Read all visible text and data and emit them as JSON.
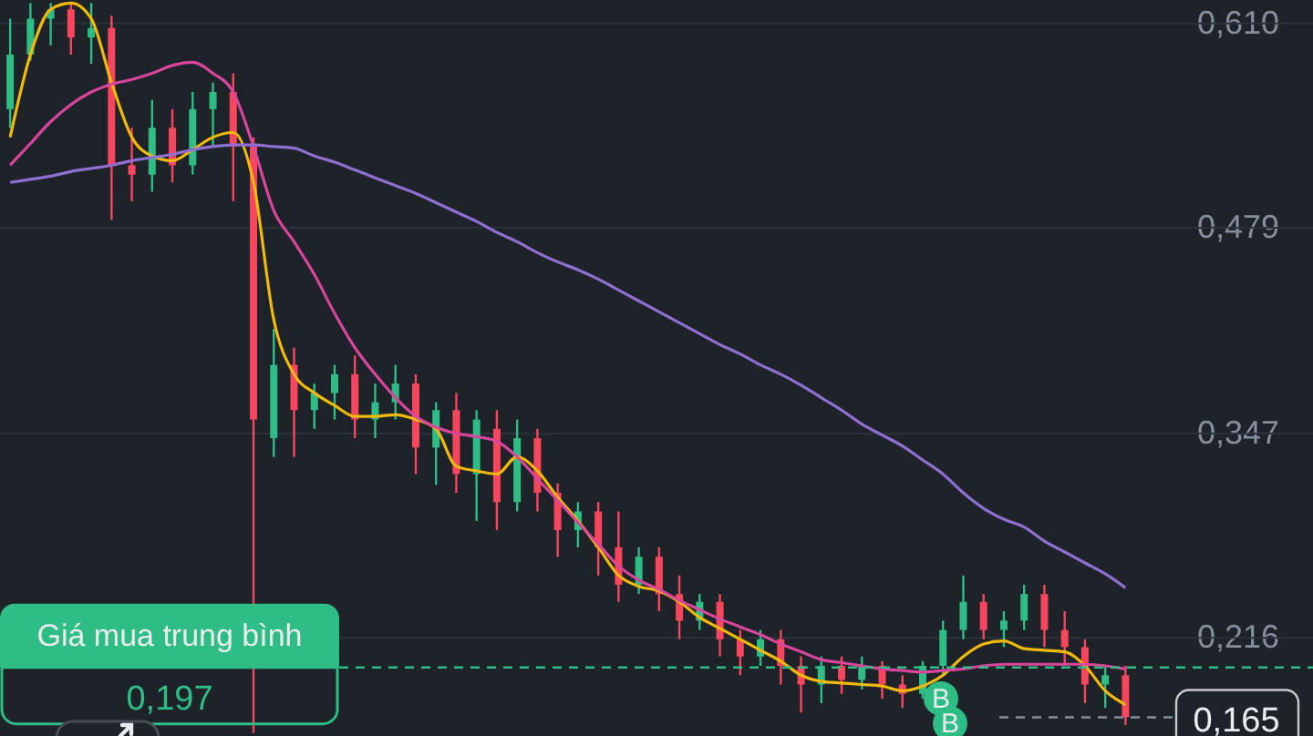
{
  "chart_data": {
    "type": "candlestick",
    "categories": [
      null,
      null,
      null,
      null,
      null,
      null,
      null,
      null,
      null,
      null,
      null,
      null,
      null,
      null,
      null,
      null,
      null,
      null,
      null,
      null,
      null,
      null,
      null,
      null,
      null,
      null,
      null,
      null,
      null,
      null,
      null,
      null,
      null,
      null,
      null,
      null,
      null,
      null,
      null,
      null,
      null,
      null,
      null,
      null,
      null,
      null,
      null,
      null,
      null,
      null,
      null,
      null,
      null,
      null,
      null,
      null
    ],
    "ohlc": [
      [
        0.555,
        0.613,
        0.543,
        0.59
      ],
      [
        0.59,
        0.623,
        0.586,
        0.613
      ],
      [
        0.613,
        0.623,
        0.596,
        0.619
      ],
      [
        0.619,
        0.623,
        0.59,
        0.601
      ],
      [
        0.601,
        0.623,
        0.584,
        0.607
      ],
      [
        0.607,
        0.615,
        0.484,
        0.519
      ],
      [
        0.519,
        0.543,
        0.496,
        0.513
      ],
      [
        0.513,
        0.561,
        0.502,
        0.543
      ],
      [
        0.543,
        0.555,
        0.508,
        0.519
      ],
      [
        0.519,
        0.566,
        0.513,
        0.555
      ],
      [
        0.555,
        0.572,
        0.531,
        0.566
      ],
      [
        0.566,
        0.578,
        0.496,
        0.531
      ],
      [
        0.531,
        0.537,
        0.155,
        0.356
      ],
      [
        0.344,
        0.414,
        0.332,
        0.391
      ],
      [
        0.391,
        0.402,
        0.332,
        0.362
      ],
      [
        0.362,
        0.379,
        0.35,
        0.373
      ],
      [
        0.373,
        0.391,
        0.356,
        0.385
      ],
      [
        0.385,
        0.397,
        0.344,
        0.356
      ],
      [
        0.356,
        0.379,
        0.344,
        0.367
      ],
      [
        0.367,
        0.391,
        0.356,
        0.379
      ],
      [
        0.379,
        0.385,
        0.321,
        0.338
      ],
      [
        0.338,
        0.367,
        0.314,
        0.362
      ],
      [
        0.362,
        0.373,
        0.309,
        0.321
      ],
      [
        0.321,
        0.362,
        0.291,
        0.356
      ],
      [
        0.35,
        0.362,
        0.285,
        0.303
      ],
      [
        0.303,
        0.356,
        0.297,
        0.344
      ],
      [
        0.344,
        0.35,
        0.297,
        0.309
      ],
      [
        0.309,
        0.315,
        0.268,
        0.285
      ],
      [
        0.285,
        0.303,
        0.274,
        0.297
      ],
      [
        0.297,
        0.303,
        0.256,
        0.274
      ],
      [
        0.274,
        0.297,
        0.239,
        0.25
      ],
      [
        0.25,
        0.274,
        0.244,
        0.268
      ],
      [
        0.268,
        0.274,
        0.233,
        0.244
      ],
      [
        0.244,
        0.256,
        0.215,
        0.227
      ],
      [
        0.227,
        0.244,
        0.221,
        0.239
      ],
      [
        0.239,
        0.244,
        0.204,
        0.215
      ],
      [
        0.215,
        0.221,
        0.192,
        0.204
      ],
      [
        0.204,
        0.221,
        0.198,
        0.215
      ],
      [
        0.215,
        0.221,
        0.186,
        0.198
      ],
      [
        0.198,
        0.204,
        0.168,
        0.186
      ],
      [
        0.186,
        0.204,
        0.174,
        0.198
      ],
      [
        0.198,
        0.204,
        0.18,
        0.189
      ],
      [
        0.189,
        0.204,
        0.183,
        0.198
      ],
      [
        0.198,
        0.201,
        0.177,
        0.186
      ],
      [
        0.186,
        0.192,
        0.171,
        0.18
      ],
      [
        0.18,
        0.201,
        0.177,
        0.198
      ],
      [
        0.198,
        0.227,
        0.192,
        0.221
      ],
      [
        0.221,
        0.256,
        0.215,
        0.239
      ],
      [
        0.239,
        0.244,
        0.215,
        0.221
      ],
      [
        0.221,
        0.233,
        0.21,
        0.227
      ],
      [
        0.227,
        0.25,
        0.221,
        0.244
      ],
      [
        0.244,
        0.25,
        0.21,
        0.221
      ],
      [
        0.221,
        0.233,
        0.198,
        0.21
      ],
      [
        0.21,
        0.215,
        0.174,
        0.186
      ],
      [
        0.186,
        0.198,
        0.171,
        0.192
      ],
      [
        0.192,
        0.198,
        0.16,
        0.165
      ]
    ],
    "colors": [
      "#2ebd85",
      "#2ebd85",
      "#2ebd85",
      "#f6465d",
      "#2ebd85",
      "#f6465d",
      "#f6465d",
      "#2ebd85",
      "#f6465d",
      "#2ebd85",
      "#2ebd85",
      "#f6465d",
      "#f6465d",
      "#2ebd85",
      "#f6465d",
      "#2ebd85",
      "#2ebd85",
      "#f6465d",
      "#2ebd85",
      "#2ebd85",
      "#f6465d",
      "#2ebd85",
      "#f6465d",
      "#2ebd85",
      "#f6465d",
      "#2ebd85",
      "#f6465d",
      "#f6465d",
      "#2ebd85",
      "#f6465d",
      "#f6465d",
      "#2ebd85",
      "#f6465d",
      "#f6465d",
      "#2ebd85",
      "#f6465d",
      "#f6465d",
      "#2ebd85",
      "#f6465d",
      "#f6465d",
      "#2ebd85",
      "#f6465d",
      "#2ebd85",
      "#f6465d",
      "#f6465d",
      "#2ebd85",
      "#2ebd85",
      "#2ebd85",
      "#f6465d",
      "#2ebd85",
      "#2ebd85",
      "#f6465d",
      "#f6465d",
      "#f6465d",
      "#2ebd85",
      "#f6465d"
    ],
    "series": [
      {
        "type": "line",
        "color": "#f0b90b",
        "values": [
          0.537,
          0.59,
          0.619,
          0.623,
          0.613,
          0.572,
          0.537,
          0.525,
          0.522,
          0.529,
          0.537,
          0.54,
          0.508,
          0.42,
          0.385,
          0.373,
          0.365,
          0.358,
          0.358,
          0.359,
          0.356,
          0.35,
          0.326,
          0.323,
          0.321,
          0.332,
          0.323,
          0.306,
          0.291,
          0.274,
          0.256,
          0.249,
          0.246,
          0.239,
          0.229,
          0.222,
          0.215,
          0.208,
          0.201,
          0.192,
          0.188,
          0.187,
          0.186,
          0.185,
          0.182,
          0.185,
          0.192,
          0.204,
          0.212,
          0.214,
          0.209,
          0.208,
          0.207,
          0.198,
          0.182,
          0.173
        ]
      },
      {
        "type": "line",
        "color": "#d9449c",
        "values": [
          0.519,
          0.533,
          0.547,
          0.558,
          0.566,
          0.571,
          0.574,
          0.578,
          0.583,
          0.585,
          0.578,
          0.566,
          0.531,
          0.49,
          0.47,
          0.449,
          0.424,
          0.402,
          0.385,
          0.37,
          0.358,
          0.351,
          0.347,
          0.345,
          0.342,
          0.332,
          0.318,
          0.304,
          0.29,
          0.276,
          0.262,
          0.253,
          0.247,
          0.24,
          0.234,
          0.228,
          0.223,
          0.218,
          0.212,
          0.207,
          0.202,
          0.2,
          0.198,
          0.196,
          0.195,
          0.194,
          0.195,
          0.196,
          0.198,
          0.199,
          0.199,
          0.199,
          0.199,
          0.199,
          0.198,
          0.196
        ]
      },
      {
        "type": "line",
        "color": "#8f6fd1",
        "values": [
          0.508,
          0.51,
          0.512,
          0.515,
          0.517,
          0.519,
          0.522,
          0.524,
          0.526,
          0.529,
          0.531,
          0.532,
          0.532,
          0.531,
          0.53,
          0.525,
          0.521,
          0.516,
          0.511,
          0.506,
          0.501,
          0.495,
          0.489,
          0.483,
          0.476,
          0.47,
          0.463,
          0.457,
          0.452,
          0.446,
          0.439,
          0.432,
          0.425,
          0.418,
          0.411,
          0.404,
          0.398,
          0.391,
          0.385,
          0.378,
          0.37,
          0.362,
          0.353,
          0.346,
          0.339,
          0.33,
          0.321,
          0.309,
          0.299,
          0.292,
          0.287,
          0.278,
          0.271,
          0.264,
          0.257,
          0.248
        ]
      }
    ],
    "ylim": [
      0.153,
      0.625
    ],
    "yticks": [
      {
        "value": 0.61,
        "label": "0,610"
      },
      {
        "value": 0.479,
        "label": "0,479"
      },
      {
        "value": 0.347,
        "label": "0,347"
      },
      {
        "value": 0.216,
        "label": "0,216"
      }
    ],
    "grid": "y",
    "tick_labels": "y",
    "ref_lines": [
      {
        "axis": "y",
        "value": 0.197,
        "label": "Giá mua trung bình",
        "color": "#2ebd85",
        "line_style": "dashed"
      },
      {
        "axis": "y",
        "value": 0.165,
        "color": "#848e9c",
        "line_style": "dashed"
      }
    ],
    "annotations": [
      "0,197",
      "0,165",
      {
        "text": "B",
        "y": 0.177
      },
      {
        "text": "B",
        "y": 0.161
      }
    ]
  }
}
